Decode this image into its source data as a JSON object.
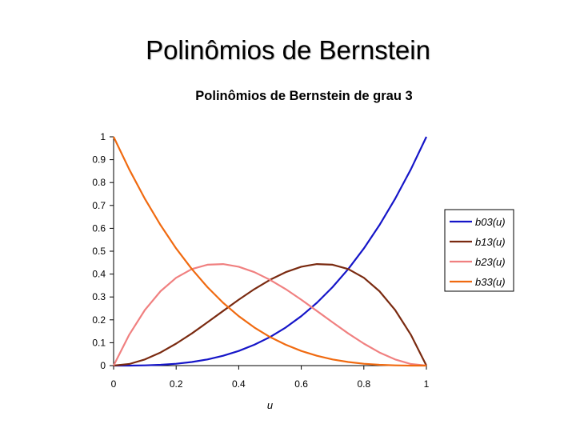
{
  "slide": {
    "title": "Polinômios de Bernstein"
  },
  "chart_data": {
    "type": "line",
    "title": "Polinômios de Bernstein de grau 3",
    "xlabel": "u",
    "ylabel": "",
    "xlim": [
      0,
      1
    ],
    "ylim": [
      0,
      1
    ],
    "x_ticks": [
      "0",
      "0.2",
      "0.4",
      "0.6",
      "0.8",
      "1"
    ],
    "y_ticks": [
      "0",
      "0.1",
      "0.2",
      "0.3",
      "0.4",
      "0.5",
      "0.6",
      "0.7",
      "0.8",
      "0.9",
      "1"
    ],
    "grid": false,
    "legend_position": "right",
    "x": [
      0,
      0.05,
      0.1,
      0.15,
      0.2,
      0.25,
      0.3,
      0.35,
      0.4,
      0.45,
      0.5,
      0.55,
      0.6,
      0.65,
      0.7,
      0.75,
      0.8,
      0.85,
      0.9,
      0.95,
      1
    ],
    "series": [
      {
        "name": "b03(u)",
        "color": "#1515c8",
        "values": [
          0,
          0.0001,
          0.001,
          0.0034,
          0.008,
          0.0156,
          0.027,
          0.0429,
          0.064,
          0.0911,
          0.125,
          0.1664,
          0.216,
          0.2746,
          0.343,
          0.4219,
          0.512,
          0.6141,
          0.729,
          0.8574,
          1
        ]
      },
      {
        "name": "b13(u)",
        "color": "#7a2a10",
        "values": [
          0,
          0.0071,
          0.027,
          0.0574,
          0.096,
          0.1406,
          0.189,
          0.2389,
          0.288,
          0.3341,
          0.375,
          0.4084,
          0.432,
          0.4436,
          0.441,
          0.4219,
          0.384,
          0.3251,
          0.243,
          0.1354,
          0
        ]
      },
      {
        "name": "b23(u)",
        "color": "#f08080",
        "values": [
          0,
          0.1354,
          0.243,
          0.3251,
          0.384,
          0.4219,
          0.441,
          0.4436,
          0.432,
          0.4084,
          0.375,
          0.3341,
          0.288,
          0.2389,
          0.189,
          0.1406,
          0.096,
          0.0574,
          0.027,
          0.0071,
          0
        ]
      },
      {
        "name": "b33(u)",
        "color": "#f06a10",
        "values": [
          1,
          0.8574,
          0.729,
          0.6141,
          0.512,
          0.4219,
          0.343,
          0.2746,
          0.216,
          0.1664,
          0.125,
          0.0911,
          0.064,
          0.0429,
          0.027,
          0.0156,
          0.008,
          0.0034,
          0.001,
          0.0001,
          0
        ]
      }
    ]
  }
}
